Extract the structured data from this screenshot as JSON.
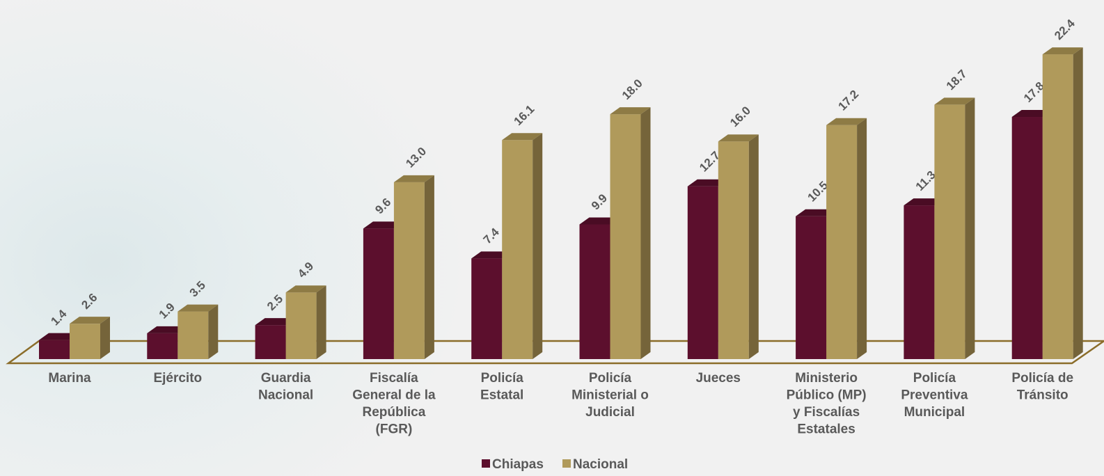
{
  "chart_data": {
    "type": "bar",
    "categories": [
      [
        "Marina"
      ],
      [
        "Ejército"
      ],
      [
        "Guardia",
        "Nacional"
      ],
      [
        "Fiscalía",
        "General de la",
        "República",
        "(FGR)"
      ],
      [
        "Policía",
        "Estatal"
      ],
      [
        "Policía",
        "Ministerial o",
        "Judicial"
      ],
      [
        "Jueces"
      ],
      [
        "Ministerio",
        "Público (MP)",
        "y Fiscalías",
        "Estatales"
      ],
      [
        "Policía",
        "Preventiva",
        "Municipal"
      ],
      [
        "Policía de",
        "Tránsito"
      ]
    ],
    "series": [
      {
        "name": "Chiapas",
        "color": "#5c0f2d",
        "side_color": "#3d0a1e",
        "top_color": "#4a0c24",
        "values": [
          1.4,
          1.9,
          2.5,
          9.6,
          7.4,
          9.9,
          12.7,
          10.5,
          11.3,
          17.8
        ],
        "labels": [
          "1.4",
          "1.9",
          "2.5",
          "9.6",
          "7.4",
          "9.9",
          "12.7",
          "10.5",
          "11.3",
          "17.8"
        ]
      },
      {
        "name": "Nacional",
        "color": "#b09a5b",
        "side_color": "#75643a",
        "top_color": "#8e7b45",
        "values": [
          2.6,
          3.5,
          4.9,
          13.0,
          16.1,
          18.0,
          16.0,
          17.2,
          18.7,
          22.4
        ],
        "labels": [
          "2.6",
          "3.5",
          "4.9",
          "13.0",
          "16.1",
          "18.0",
          "16.0",
          "17.2",
          "18.7",
          "22.4"
        ]
      }
    ],
    "legend": "bottom",
    "floor_color": "#8b6d2a"
  }
}
